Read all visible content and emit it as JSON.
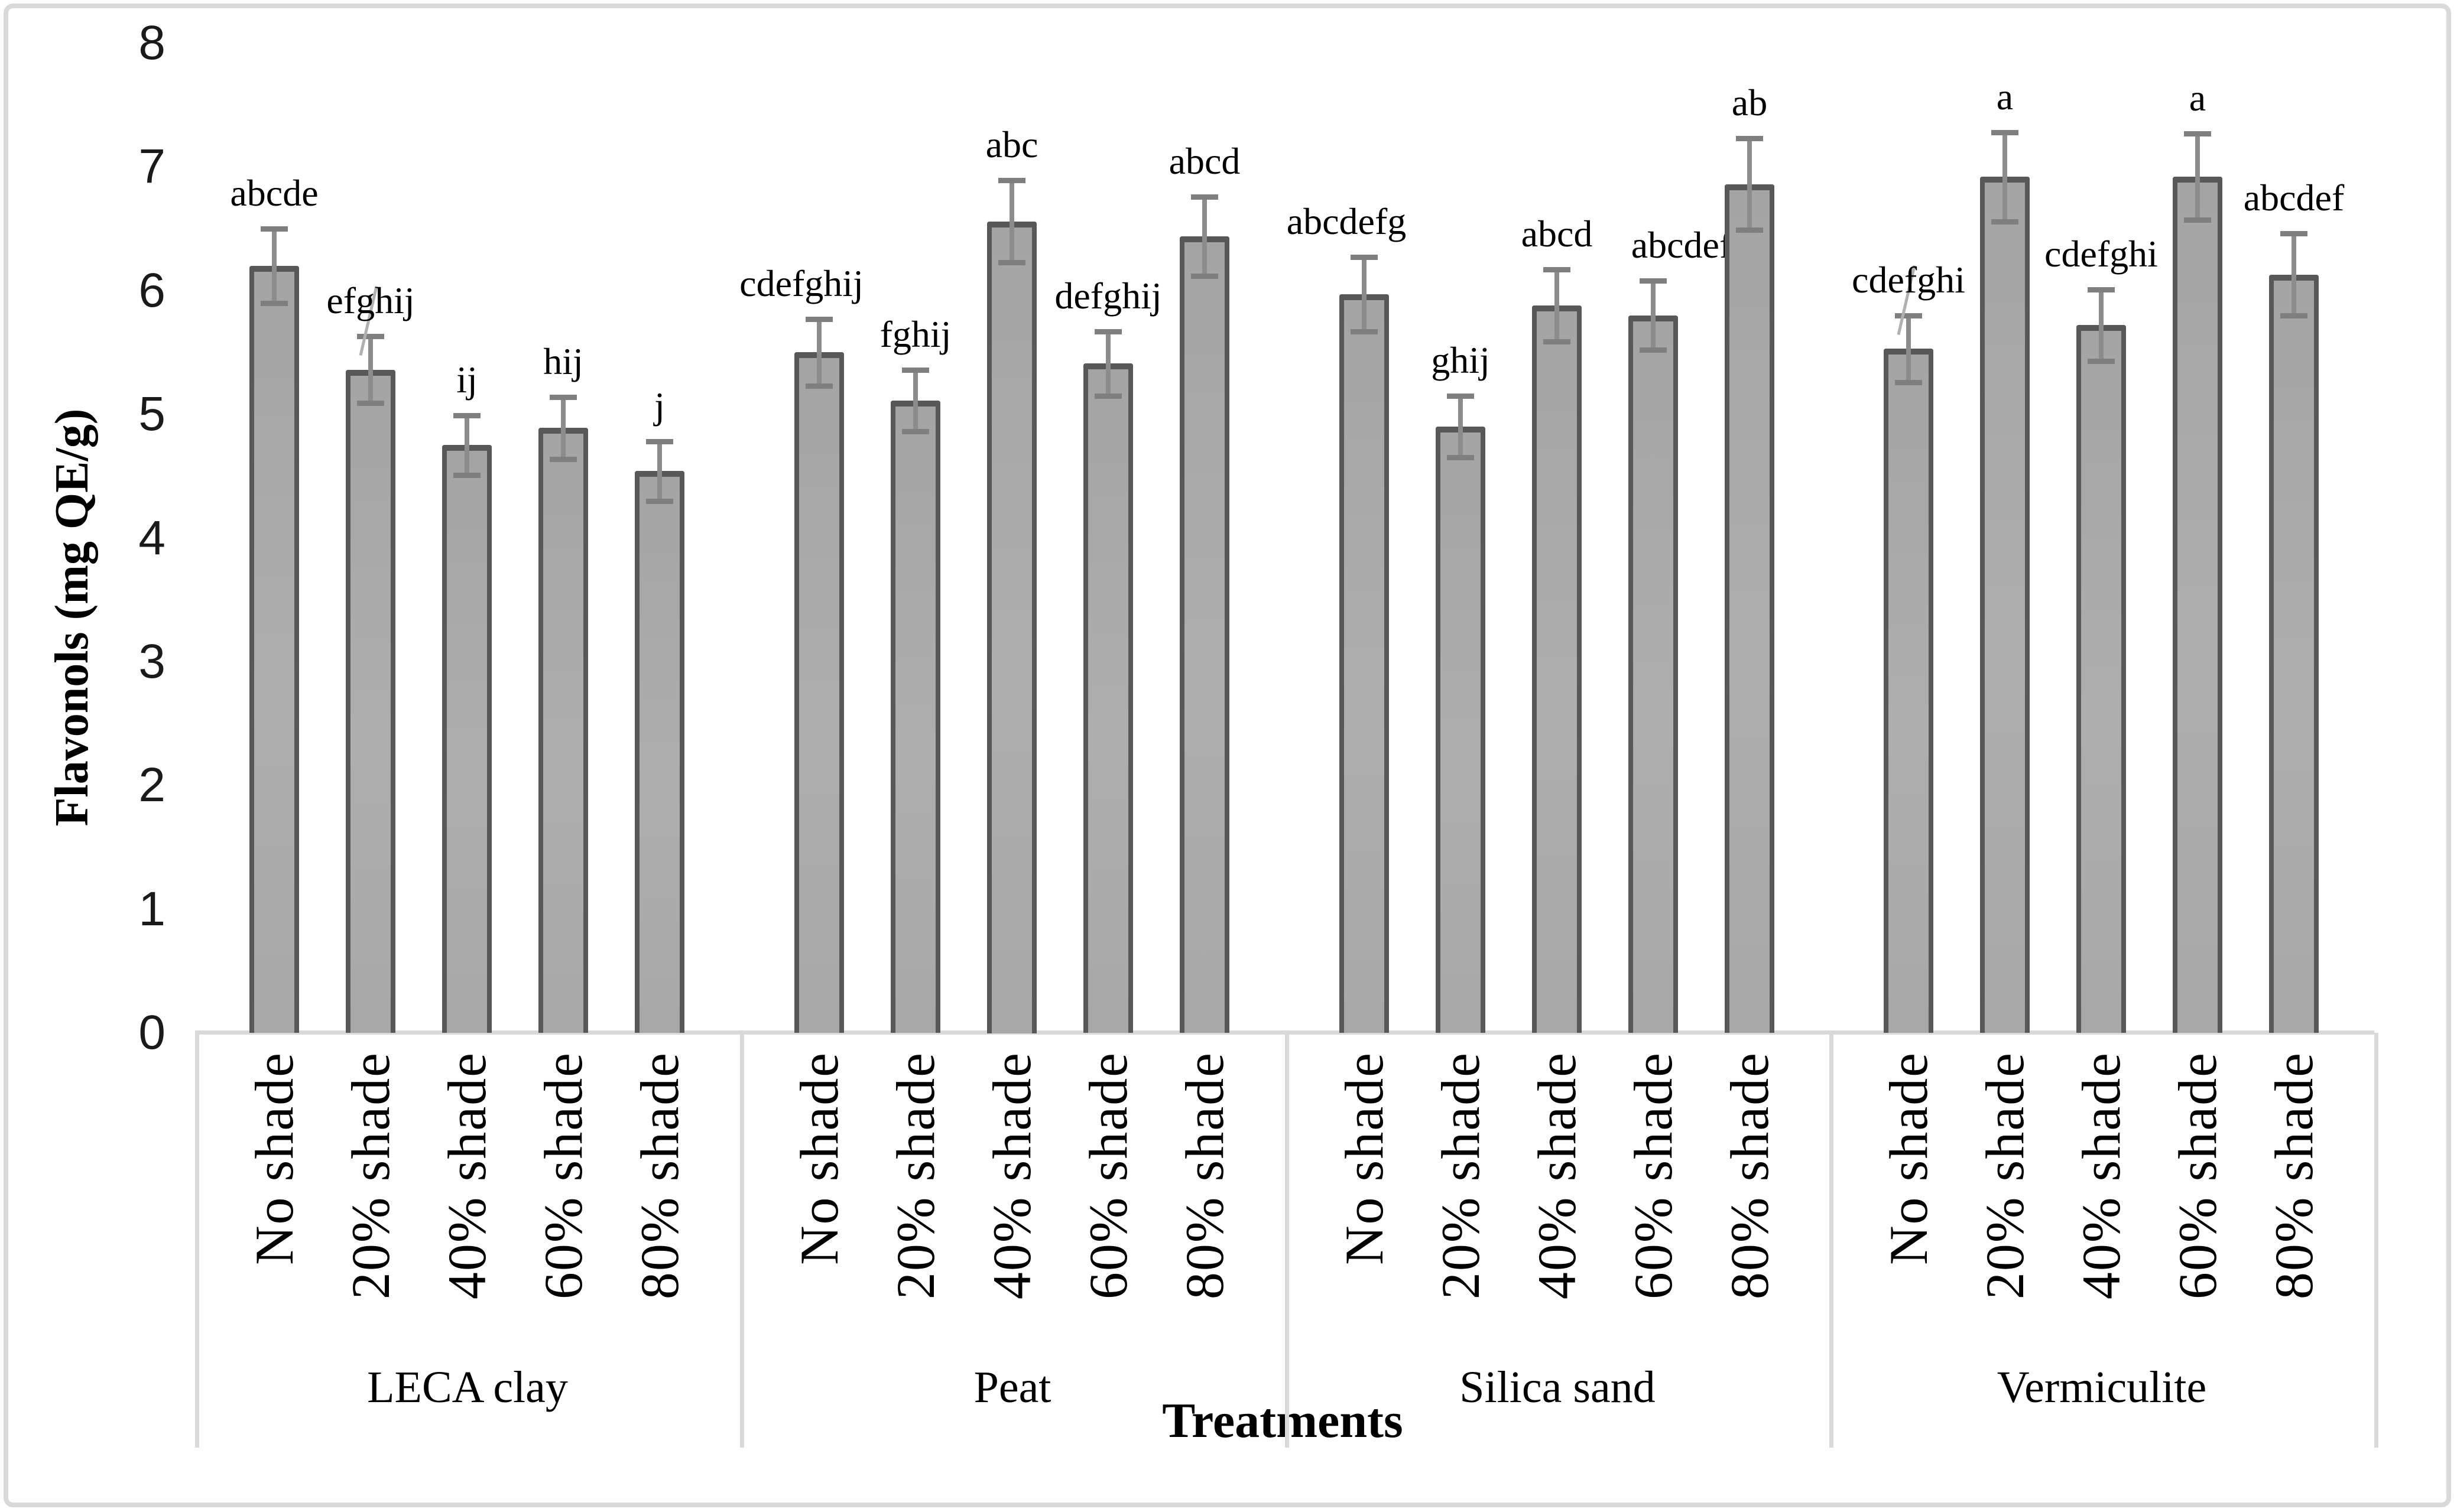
{
  "style": {
    "bar_fill": "#a8a8a8",
    "bar_border": "#585858",
    "error_color": "#7f7f7f",
    "axis_line_color": "#d9d9d9",
    "text_color": "#000000",
    "background": "#ffffff"
  },
  "chart_data": {
    "type": "bar",
    "title": "",
    "ylabel": "Flavonols (mg QE/g)",
    "xlabel": "Treatments",
    "ylim": [
      0,
      8
    ],
    "yticks": [
      0,
      1,
      2,
      3,
      4,
      5,
      6,
      7,
      8
    ],
    "grid": false,
    "legend": "none",
    "error_bars": true,
    "categories": [
      "No shade",
      "20% shade",
      "40% shade",
      "60% shade",
      "80% shade"
    ],
    "groups": [
      {
        "name": "LECA clay",
        "bars": [
          {
            "category": "No shade",
            "value": 6.2,
            "err": 0.3,
            "letters": "abcde"
          },
          {
            "category": "20% shade",
            "value": 5.36,
            "err": 0.27,
            "letters": "efghij",
            "leader": true
          },
          {
            "category": "40% shade",
            "value": 4.75,
            "err": 0.24,
            "letters": "ij"
          },
          {
            "category": "60% shade",
            "value": 4.89,
            "err": 0.25,
            "letters": "hij"
          },
          {
            "category": "80% shade",
            "value": 4.54,
            "err": 0.24,
            "letters": "j"
          }
        ]
      },
      {
        "name": "Peat",
        "bars": [
          {
            "category": "No shade",
            "value": 5.5,
            "err": 0.27,
            "letters": "cdefghij",
            "dx": -30
          },
          {
            "category": "20% shade",
            "value": 5.11,
            "err": 0.25,
            "letters": "fghij"
          },
          {
            "category": "40% shade",
            "value": 6.56,
            "err": 0.33,
            "letters": "abc"
          },
          {
            "category": "60% shade",
            "value": 5.41,
            "err": 0.26,
            "letters": "defghij"
          },
          {
            "category": "80% shade",
            "value": 6.44,
            "err": 0.32,
            "letters": "abcd"
          }
        ]
      },
      {
        "name": "Silica sand",
        "bars": [
          {
            "category": "No shade",
            "value": 5.97,
            "err": 0.3,
            "letters": "abcdefg",
            "dx": -30
          },
          {
            "category": "20% shade",
            "value": 4.9,
            "err": 0.25,
            "letters": "ghij"
          },
          {
            "category": "40% shade",
            "value": 5.88,
            "err": 0.29,
            "letters": "abcd"
          },
          {
            "category": "60% shade",
            "value": 5.8,
            "err": 0.28,
            "letters": "abcdefgh",
            "dx": 80
          },
          {
            "category": "80% shade",
            "value": 6.86,
            "err": 0.37,
            "letters": "ab"
          }
        ]
      },
      {
        "name": "Vermiculite",
        "bars": [
          {
            "category": "No shade",
            "value": 5.53,
            "err": 0.27,
            "letters": "cdefghi",
            "leader": true
          },
          {
            "category": "20% shade",
            "value": 6.92,
            "err": 0.36,
            "letters": "a"
          },
          {
            "category": "40% shade",
            "value": 5.72,
            "err": 0.29,
            "letters": "cdefghi"
          },
          {
            "category": "60% shade",
            "value": 6.92,
            "err": 0.35,
            "letters": "a"
          },
          {
            "category": "80% shade",
            "value": 6.13,
            "err": 0.33,
            "letters": "abcdef"
          }
        ]
      }
    ]
  }
}
